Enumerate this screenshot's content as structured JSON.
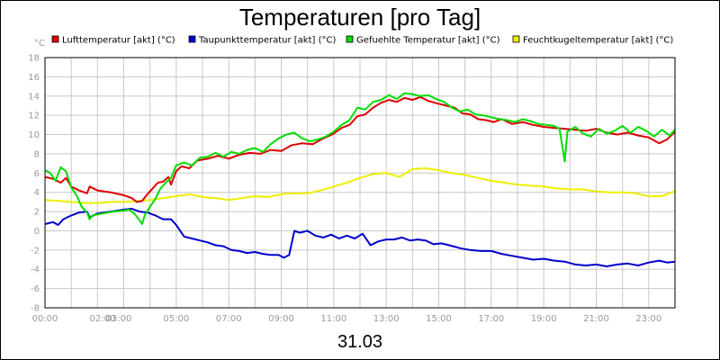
{
  "chart_data": {
    "type": "line",
    "title": "Temperaturen [pro Tag]",
    "date_label": "31.03",
    "ylabel": "°C",
    "ylim": [
      -8,
      18
    ],
    "yticks": [
      -8,
      -6,
      -4,
      -2,
      0,
      2,
      4,
      6,
      8,
      10,
      12,
      14,
      16,
      18
    ],
    "xlim": [
      0,
      24
    ],
    "xticks": [
      {
        "h": 0,
        "label": "00:00"
      },
      {
        "h": 2,
        "label": "02:00"
      },
      {
        "h": 3,
        "label": "03:00"
      },
      {
        "h": 5,
        "label": "05:00"
      },
      {
        "h": 7,
        "label": "07:00"
      },
      {
        "h": 9,
        "label": "09:00"
      },
      {
        "h": 11,
        "label": "11:00"
      },
      {
        "h": 13,
        "label": "13:00"
      },
      {
        "h": 15,
        "label": "15:00"
      },
      {
        "h": 17,
        "label": "17:00"
      },
      {
        "h": 19,
        "label": "19:00"
      },
      {
        "h": 21,
        "label": "21:00"
      },
      {
        "h": 23,
        "label": "23:00"
      }
    ],
    "grid": true,
    "legend_position": "top",
    "series": [
      {
        "name": "Lufttemperatur [akt] (°C)",
        "color": "#dd0000",
        "points": [
          [
            0,
            5.6
          ],
          [
            0.3,
            5.4
          ],
          [
            0.6,
            5.0
          ],
          [
            0.8,
            5.5
          ],
          [
            1.0,
            4.6
          ],
          [
            1.3,
            4.2
          ],
          [
            1.6,
            3.9
          ],
          [
            1.7,
            4.6
          ],
          [
            2.0,
            4.2
          ],
          [
            2.5,
            4.0
          ],
          [
            3.0,
            3.7
          ],
          [
            3.3,
            3.4
          ],
          [
            3.5,
            3.0
          ],
          [
            3.7,
            3.1
          ],
          [
            3.9,
            3.8
          ],
          [
            4.1,
            4.4
          ],
          [
            4.3,
            5.0
          ],
          [
            4.5,
            5.1
          ],
          [
            4.7,
            5.6
          ],
          [
            4.8,
            4.8
          ],
          [
            5.0,
            6.2
          ],
          [
            5.2,
            6.7
          ],
          [
            5.5,
            6.5
          ],
          [
            5.8,
            7.3
          ],
          [
            6.2,
            7.5
          ],
          [
            6.6,
            7.8
          ],
          [
            7.0,
            7.5
          ],
          [
            7.4,
            7.9
          ],
          [
            7.8,
            8.1
          ],
          [
            8.2,
            8.0
          ],
          [
            8.6,
            8.4
          ],
          [
            9.0,
            8.3
          ],
          [
            9.4,
            8.9
          ],
          [
            9.8,
            9.1
          ],
          [
            10.2,
            9.0
          ],
          [
            10.6,
            9.6
          ],
          [
            11.0,
            10.1
          ],
          [
            11.3,
            10.7
          ],
          [
            11.6,
            11.0
          ],
          [
            11.9,
            11.9
          ],
          [
            12.2,
            12.1
          ],
          [
            12.5,
            12.8
          ],
          [
            12.8,
            13.3
          ],
          [
            13.1,
            13.6
          ],
          [
            13.4,
            13.4
          ],
          [
            13.7,
            13.8
          ],
          [
            14.0,
            13.6
          ],
          [
            14.3,
            13.9
          ],
          [
            14.6,
            13.5
          ],
          [
            15.0,
            13.2
          ],
          [
            15.3,
            13.0
          ],
          [
            15.6,
            12.8
          ],
          [
            15.9,
            12.2
          ],
          [
            16.2,
            12.1
          ],
          [
            16.5,
            11.6
          ],
          [
            16.8,
            11.5
          ],
          [
            17.1,
            11.3
          ],
          [
            17.4,
            11.6
          ],
          [
            17.8,
            11.1
          ],
          [
            18.2,
            11.3
          ],
          [
            18.6,
            11.0
          ],
          [
            19.0,
            10.8
          ],
          [
            19.4,
            10.7
          ],
          [
            19.8,
            10.6
          ],
          [
            20.2,
            10.5
          ],
          [
            20.6,
            10.4
          ],
          [
            21.0,
            10.6
          ],
          [
            21.4,
            10.2
          ],
          [
            21.8,
            10.0
          ],
          [
            22.2,
            10.2
          ],
          [
            22.6,
            9.9
          ],
          [
            23.0,
            9.7
          ],
          [
            23.4,
            9.1
          ],
          [
            23.7,
            9.5
          ],
          [
            24.0,
            10.3
          ]
        ]
      },
      {
        "name": "Taupunkttemperatur [akt] (°C)",
        "color": "#0000cc",
        "points": [
          [
            0,
            0.7
          ],
          [
            0.3,
            0.9
          ],
          [
            0.5,
            0.6
          ],
          [
            0.7,
            1.2
          ],
          [
            1.0,
            1.6
          ],
          [
            1.3,
            1.9
          ],
          [
            1.6,
            2.0
          ],
          [
            1.7,
            1.4
          ],
          [
            2.0,
            1.8
          ],
          [
            2.5,
            2.0
          ],
          [
            3.0,
            2.2
          ],
          [
            3.3,
            2.3
          ],
          [
            3.6,
            2.0
          ],
          [
            3.9,
            1.9
          ],
          [
            4.2,
            1.6
          ],
          [
            4.5,
            1.2
          ],
          [
            4.8,
            1.2
          ],
          [
            5.0,
            0.6
          ],
          [
            5.3,
            -0.6
          ],
          [
            5.6,
            -0.8
          ],
          [
            5.9,
            -1.0
          ],
          [
            6.2,
            -1.2
          ],
          [
            6.5,
            -1.5
          ],
          [
            6.8,
            -1.6
          ],
          [
            7.1,
            -2.0
          ],
          [
            7.4,
            -2.1
          ],
          [
            7.7,
            -2.3
          ],
          [
            8.0,
            -2.2
          ],
          [
            8.3,
            -2.4
          ],
          [
            8.6,
            -2.5
          ],
          [
            8.9,
            -2.5
          ],
          [
            9.1,
            -2.8
          ],
          [
            9.3,
            -2.5
          ],
          [
            9.5,
            0.0
          ],
          [
            9.7,
            -0.2
          ],
          [
            10.0,
            0.0
          ],
          [
            10.3,
            -0.5
          ],
          [
            10.6,
            -0.7
          ],
          [
            10.9,
            -0.4
          ],
          [
            11.2,
            -0.8
          ],
          [
            11.5,
            -0.5
          ],
          [
            11.8,
            -0.8
          ],
          [
            12.1,
            -0.3
          ],
          [
            12.4,
            -1.5
          ],
          [
            12.7,
            -1.1
          ],
          [
            13.0,
            -0.9
          ],
          [
            13.3,
            -0.9
          ],
          [
            13.6,
            -0.7
          ],
          [
            13.9,
            -1.0
          ],
          [
            14.2,
            -0.9
          ],
          [
            14.5,
            -1.0
          ],
          [
            14.8,
            -1.4
          ],
          [
            15.1,
            -1.3
          ],
          [
            15.4,
            -1.5
          ],
          [
            15.8,
            -1.8
          ],
          [
            16.2,
            -2.0
          ],
          [
            16.6,
            -2.1
          ],
          [
            17.0,
            -2.1
          ],
          [
            17.4,
            -2.4
          ],
          [
            17.8,
            -2.6
          ],
          [
            18.2,
            -2.8
          ],
          [
            18.6,
            -3.0
          ],
          [
            19.0,
            -2.9
          ],
          [
            19.4,
            -3.1
          ],
          [
            19.8,
            -3.2
          ],
          [
            20.2,
            -3.5
          ],
          [
            20.6,
            -3.6
          ],
          [
            21.0,
            -3.5
          ],
          [
            21.4,
            -3.7
          ],
          [
            21.8,
            -3.5
          ],
          [
            22.2,
            -3.4
          ],
          [
            22.6,
            -3.6
          ],
          [
            23.0,
            -3.3
          ],
          [
            23.4,
            -3.1
          ],
          [
            23.7,
            -3.3
          ],
          [
            24.0,
            -3.2
          ]
        ]
      },
      {
        "name": "Gefuehlte Temperatur [akt] (°C)",
        "color": "#00dd00",
        "points": [
          [
            0,
            6.3
          ],
          [
            0.2,
            6.0
          ],
          [
            0.4,
            5.2
          ],
          [
            0.6,
            6.6
          ],
          [
            0.8,
            6.2
          ],
          [
            1.0,
            4.5
          ],
          [
            1.2,
            3.7
          ],
          [
            1.4,
            2.5
          ],
          [
            1.6,
            1.9
          ],
          [
            1.7,
            1.2
          ],
          [
            1.8,
            1.6
          ],
          [
            2.2,
            1.8
          ],
          [
            2.6,
            2.0
          ],
          [
            3.0,
            2.1
          ],
          [
            3.2,
            2.2
          ],
          [
            3.4,
            1.8
          ],
          [
            3.6,
            1.1
          ],
          [
            3.7,
            0.7
          ],
          [
            3.8,
            1.6
          ],
          [
            4.0,
            2.5
          ],
          [
            4.2,
            3.3
          ],
          [
            4.4,
            4.4
          ],
          [
            4.6,
            5.0
          ],
          [
            4.8,
            5.5
          ],
          [
            5.0,
            6.8
          ],
          [
            5.3,
            7.1
          ],
          [
            5.6,
            6.8
          ],
          [
            5.9,
            7.6
          ],
          [
            6.2,
            7.7
          ],
          [
            6.5,
            8.1
          ],
          [
            6.8,
            7.7
          ],
          [
            7.1,
            8.2
          ],
          [
            7.4,
            8.0
          ],
          [
            7.7,
            8.4
          ],
          [
            8.0,
            8.6
          ],
          [
            8.3,
            8.2
          ],
          [
            8.6,
            9.0
          ],
          [
            8.9,
            9.6
          ],
          [
            9.2,
            10.0
          ],
          [
            9.5,
            10.2
          ],
          [
            9.8,
            9.6
          ],
          [
            10.1,
            9.3
          ],
          [
            10.4,
            9.5
          ],
          [
            10.7,
            9.8
          ],
          [
            11.0,
            10.3
          ],
          [
            11.3,
            11.0
          ],
          [
            11.6,
            11.5
          ],
          [
            11.9,
            12.8
          ],
          [
            12.2,
            12.6
          ],
          [
            12.5,
            13.4
          ],
          [
            12.8,
            13.6
          ],
          [
            13.1,
            14.1
          ],
          [
            13.4,
            13.7
          ],
          [
            13.7,
            14.3
          ],
          [
            14.0,
            14.2
          ],
          [
            14.3,
            14.0
          ],
          [
            14.6,
            14.1
          ],
          [
            14.9,
            13.7
          ],
          [
            15.2,
            13.4
          ],
          [
            15.5,
            12.8
          ],
          [
            15.8,
            12.4
          ],
          [
            16.1,
            12.6
          ],
          [
            16.4,
            12.1
          ],
          [
            16.7,
            12.0
          ],
          [
            17.0,
            11.8
          ],
          [
            17.3,
            11.6
          ],
          [
            17.6,
            11.5
          ],
          [
            17.9,
            11.3
          ],
          [
            18.2,
            11.6
          ],
          [
            18.5,
            11.4
          ],
          [
            18.8,
            11.1
          ],
          [
            19.1,
            11.0
          ],
          [
            19.4,
            10.9
          ],
          [
            19.6,
            10.6
          ],
          [
            19.8,
            7.2
          ],
          [
            19.9,
            10.3
          ],
          [
            20.2,
            10.8
          ],
          [
            20.5,
            10.1
          ],
          [
            20.8,
            9.8
          ],
          [
            21.1,
            10.6
          ],
          [
            21.4,
            10.1
          ],
          [
            21.7,
            10.4
          ],
          [
            22.0,
            10.9
          ],
          [
            22.3,
            10.2
          ],
          [
            22.6,
            10.8
          ],
          [
            22.9,
            10.4
          ],
          [
            23.2,
            9.8
          ],
          [
            23.5,
            10.5
          ],
          [
            23.8,
            9.9
          ],
          [
            24.0,
            10.5
          ]
        ]
      },
      {
        "name": "Feuchtkugeltemperatur [akt] (°C)",
        "color": "#eeee00",
        "points": [
          [
            0,
            3.2
          ],
          [
            0.5,
            3.1
          ],
          [
            1.0,
            3.0
          ],
          [
            1.5,
            2.9
          ],
          [
            2.0,
            2.9
          ],
          [
            2.5,
            3.0
          ],
          [
            3.0,
            3.0
          ],
          [
            3.5,
            3.1
          ],
          [
            4.0,
            3.2
          ],
          [
            4.5,
            3.4
          ],
          [
            5.0,
            3.6
          ],
          [
            5.5,
            3.8
          ],
          [
            6.0,
            3.5
          ],
          [
            6.5,
            3.4
          ],
          [
            7.0,
            3.2
          ],
          [
            7.5,
            3.4
          ],
          [
            8.0,
            3.6
          ],
          [
            8.5,
            3.5
          ],
          [
            9.0,
            3.8
          ],
          [
            9.5,
            3.9
          ],
          [
            10.0,
            3.9
          ],
          [
            10.5,
            4.2
          ],
          [
            11.0,
            4.6
          ],
          [
            11.5,
            5.0
          ],
          [
            12.0,
            5.5
          ],
          [
            12.5,
            5.9
          ],
          [
            13.0,
            6.0
          ],
          [
            13.5,
            5.6
          ],
          [
            14.0,
            6.4
          ],
          [
            14.5,
            6.5
          ],
          [
            15.0,
            6.3
          ],
          [
            15.5,
            6.0
          ],
          [
            16.0,
            5.8
          ],
          [
            16.5,
            5.5
          ],
          [
            17.0,
            5.2
          ],
          [
            17.5,
            5.0
          ],
          [
            18.0,
            4.8
          ],
          [
            18.5,
            4.7
          ],
          [
            19.0,
            4.6
          ],
          [
            19.5,
            4.4
          ],
          [
            20.0,
            4.3
          ],
          [
            20.5,
            4.3
          ],
          [
            21.0,
            4.1
          ],
          [
            21.5,
            4.0
          ],
          [
            22.0,
            4.0
          ],
          [
            22.5,
            3.9
          ],
          [
            23.0,
            3.6
          ],
          [
            23.5,
            3.6
          ],
          [
            24.0,
            4.1
          ]
        ]
      }
    ]
  }
}
